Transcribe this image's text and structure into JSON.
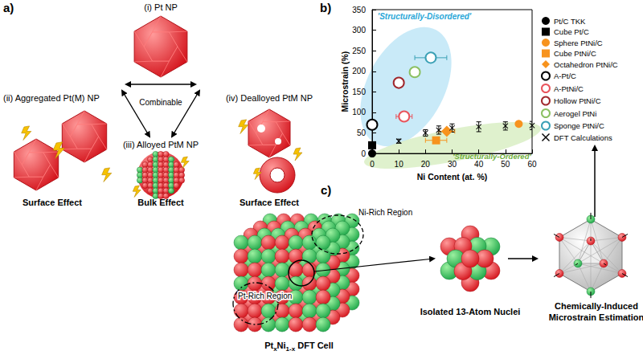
{
  "chart_data": {
    "type": "scatter",
    "title": "b)",
    "x_label": "Ni Content (at. %)",
    "y_label": "Microstrain (%)",
    "xlim": [
      0,
      60
    ],
    "xticks": [
      0,
      10,
      20,
      30,
      40,
      50,
      60
    ],
    "ylim": [
      0,
      350
    ],
    "yticks": [
      0,
      50,
      100,
      150,
      200,
      250,
      300,
      350
    ],
    "grid": false,
    "legend": "right",
    "annotations": [
      "'Structurally-Disordered'",
      "'Structurally-Ordered'"
    ],
    "series": [
      {
        "name": "Pt/C TKK",
        "color": "#000000",
        "marker": "circle",
        "x": [
          0
        ],
        "values": [
          0
        ]
      },
      {
        "name": "Cube Pt/C",
        "color": "#000000",
        "marker": "square",
        "x": [
          0
        ],
        "values": [
          20
        ]
      },
      {
        "name": "Sphere PtNi/C",
        "color": "#f7931e",
        "marker": "circle",
        "x": [
          55
        ],
        "values": [
          72
        ]
      },
      {
        "name": "Cube PtNi/C",
        "color": "#f7931e",
        "marker": "square",
        "x": [
          24
        ],
        "values": [
          32
        ],
        "x_error": [
          4
        ]
      },
      {
        "name": "Octahedron PtNi/C",
        "color": "#f7931e",
        "marker": "diamond",
        "x": [
          28
        ],
        "values": [
          54
        ],
        "x_error": [
          3
        ]
      },
      {
        "name": "A-Pt/C",
        "color": "#000000",
        "marker": "open_circle",
        "x": [
          0
        ],
        "values": [
          70
        ]
      },
      {
        "name": "A-PtNi/C",
        "color": "#e9545c",
        "marker": "open_circle",
        "x": [
          12
        ],
        "values": [
          90
        ],
        "x_error": [
          3
        ]
      },
      {
        "name": "Hollow PtNi/C",
        "color": "#a0282d",
        "marker": "open_circle",
        "x": [
          10
        ],
        "values": [
          172
        ]
      },
      {
        "name": "Aerogel PtNi",
        "color": "#8cc063",
        "marker": "open_circle",
        "x": [
          16
        ],
        "values": [
          198
        ]
      },
      {
        "name": "Sponge PtNi/C",
        "color": "#3aa0b5",
        "marker": "open_circle",
        "x": [
          22
        ],
        "values": [
          233
        ],
        "x_error": [
          6
        ]
      },
      {
        "name": "DFT Calculations",
        "color": "#000000",
        "marker": "x",
        "x": [
          10,
          20,
          25,
          30,
          40,
          50,
          60
        ],
        "values": [
          30,
          50,
          57,
          62,
          65,
          67,
          68
        ],
        "y_error": [
          5,
          8,
          10,
          10,
          12,
          10,
          10
        ]
      }
    ]
  },
  "diagram": {
    "panel_a": {
      "label": "a)",
      "center_label": "Combinable",
      "nodes": [
        {
          "label": "(i) Pt NP"
        },
        {
          "label": "(ii) Aggregated Pt(M) NP",
          "effect": "Surface Effect"
        },
        {
          "label": "(iii) Alloyed PtM NP",
          "effect": "Bulk Effect"
        },
        {
          "label": "(iv) Dealloyed PtM NP",
          "effect": "Surface Effect"
        }
      ]
    },
    "panel_c": {
      "label": "c)",
      "cell_title": [
        {
          "text": "Pt"
        },
        {
          "text": "x",
          "sub": true
        },
        {
          "text": "Ni"
        },
        {
          "text": "1-x",
          "sub": true
        },
        {
          "text": " DFT Cell"
        }
      ],
      "regions": [
        "Ni-Rich Region",
        "Pt-Rich Region"
      ],
      "nucleus_label": "Isolated 13-Atom Nuclei",
      "estimation_label": [
        "Chemically-Induced",
        "Microstrain Estimation"
      ]
    }
  }
}
